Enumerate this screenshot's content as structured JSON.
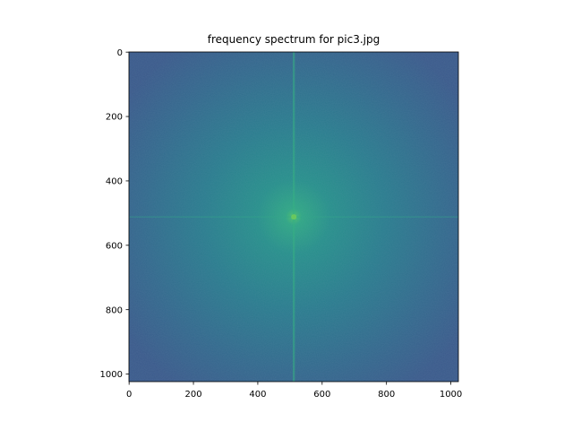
{
  "chart_data": {
    "type": "heatmap",
    "title": "frequency spectrum for pic3.jpg",
    "xlabel": "",
    "ylabel": "",
    "xlim": [
      0,
      1023
    ],
    "ylim": [
      1023,
      0
    ],
    "y_inverted": true,
    "grid": false,
    "legend": "none",
    "colormap": "viridis",
    "image_size": [
      1024,
      1024
    ],
    "xticks": [
      0,
      200,
      400,
      600,
      800,
      1000
    ],
    "yticks": [
      0,
      200,
      400,
      600,
      800,
      1000
    ],
    "xtick_labels": [
      "0",
      "200",
      "400",
      "600",
      "800",
      "1000"
    ],
    "ytick_labels": [
      "0",
      "200",
      "400",
      "600",
      "800",
      "1000"
    ],
    "spectrum_peak": [
      512,
      512
    ],
    "colors": {
      "background": "#3b5d8c",
      "mid": "#2a8a8c",
      "center": "#3fbf73"
    }
  }
}
